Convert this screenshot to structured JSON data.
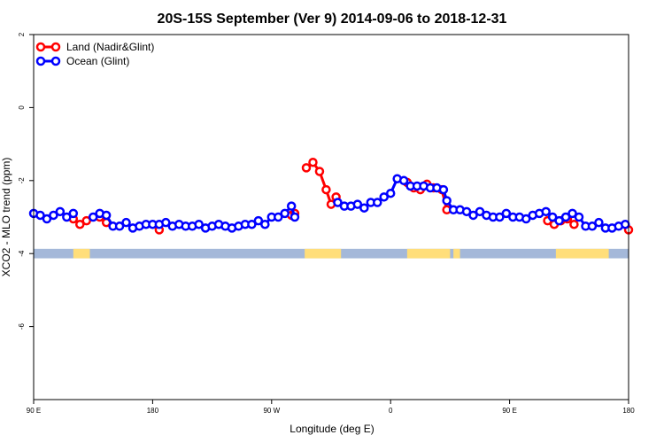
{
  "chart_data": {
    "type": "line",
    "title": "20S-15S September (Ver 9)   2014-09-06 to 2018-12-31",
    "xlabel": "Longitude (deg E)",
    "ylabel": "XCO2 - MLO trend (ppm)",
    "xlim": [
      90,
      450
    ],
    "ylim": [
      -8,
      2
    ],
    "x_ticks": [
      {
        "value": 90,
        "label": "90 E"
      },
      {
        "value": 162,
        "label": "180"
      },
      {
        "value": 234,
        "label": "90 W"
      },
      {
        "value": 306,
        "label": "0"
      },
      {
        "value": 378,
        "label": "90 E"
      },
      {
        "value": 450,
        "label": "180"
      }
    ],
    "y_ticks": [
      {
        "value": 2,
        "label": "2"
      },
      {
        "value": 0,
        "label": "0"
      },
      {
        "value": -2,
        "label": "-2"
      },
      {
        "value": -4,
        "label": "-4"
      },
      {
        "value": -6,
        "label": "-6"
      }
    ],
    "legend_position": "top-left",
    "grid": false,
    "series": [
      {
        "name": "Land (Nadir&Glint)",
        "color": "#ff0000",
        "points": [
          [
            114,
            -3.05
          ],
          [
            118,
            -3.2
          ],
          [
            122,
            -3.1
          ],
          [
            130,
            -3.0
          ],
          [
            134,
            -3.15
          ],
          [
            166,
            -3.35
          ],
          [
            246,
            -2.95
          ],
          [
            248,
            -2.9
          ],
          [
            255,
            -1.65
          ],
          [
            259,
            -1.5
          ],
          [
            263,
            -1.75
          ],
          [
            267,
            -2.25
          ],
          [
            270,
            -2.65
          ],
          [
            273,
            -2.45
          ],
          [
            316,
            -2.05
          ],
          [
            320,
            -2.2
          ],
          [
            324,
            -2.25
          ],
          [
            328,
            -2.1
          ],
          [
            332,
            -2.2
          ],
          [
            337,
            -2.25
          ],
          [
            340,
            -2.8
          ],
          [
            401,
            -3.1
          ],
          [
            405,
            -3.2
          ],
          [
            409,
            -3.1
          ],
          [
            413,
            -3.05
          ],
          [
            417,
            -3.2
          ],
          [
            450,
            -3.35
          ]
        ]
      },
      {
        "name": "Ocean (Glint)",
        "color": "#0000ff",
        "points": [
          [
            90,
            -2.9
          ],
          [
            94,
            -2.95
          ],
          [
            98,
            -3.05
          ],
          [
            102,
            -2.95
          ],
          [
            106,
            -2.85
          ],
          [
            110,
            -3.0
          ],
          [
            114,
            -2.9
          ],
          [
            126,
            -3.0
          ],
          [
            130,
            -2.9
          ],
          [
            134,
            -2.95
          ],
          [
            138,
            -3.25
          ],
          [
            142,
            -3.25
          ],
          [
            146,
            -3.15
          ],
          [
            150,
            -3.3
          ],
          [
            154,
            -3.25
          ],
          [
            158,
            -3.2
          ],
          [
            162,
            -3.2
          ],
          [
            166,
            -3.2
          ],
          [
            170,
            -3.15
          ],
          [
            174,
            -3.25
          ],
          [
            178,
            -3.2
          ],
          [
            182,
            -3.25
          ],
          [
            186,
            -3.25
          ],
          [
            190,
            -3.2
          ],
          [
            194,
            -3.3
          ],
          [
            198,
            -3.25
          ],
          [
            202,
            -3.2
          ],
          [
            206,
            -3.25
          ],
          [
            210,
            -3.3
          ],
          [
            214,
            -3.25
          ],
          [
            218,
            -3.2
          ],
          [
            222,
            -3.2
          ],
          [
            226,
            -3.1
          ],
          [
            230,
            -3.2
          ],
          [
            234,
            -3.0
          ],
          [
            238,
            -3.0
          ],
          [
            242,
            -2.9
          ],
          [
            246,
            -2.7
          ],
          [
            248,
            -3.0
          ],
          [
            274,
            -2.6
          ],
          [
            278,
            -2.7
          ],
          [
            282,
            -2.7
          ],
          [
            286,
            -2.65
          ],
          [
            290,
            -2.75
          ],
          [
            294,
            -2.6
          ],
          [
            298,
            -2.6
          ],
          [
            302,
            -2.45
          ],
          [
            306,
            -2.35
          ],
          [
            310,
            -1.95
          ],
          [
            314,
            -2.0
          ],
          [
            318,
            -2.15
          ],
          [
            322,
            -2.15
          ],
          [
            326,
            -2.15
          ],
          [
            330,
            -2.2
          ],
          [
            334,
            -2.2
          ],
          [
            338,
            -2.25
          ],
          [
            340,
            -2.55
          ],
          [
            344,
            -2.8
          ],
          [
            348,
            -2.8
          ],
          [
            352,
            -2.85
          ],
          [
            356,
            -2.95
          ],
          [
            360,
            -2.85
          ],
          [
            364,
            -2.95
          ],
          [
            368,
            -3.0
          ],
          [
            372,
            -3.0
          ],
          [
            376,
            -2.9
          ],
          [
            380,
            -3.0
          ],
          [
            384,
            -3.0
          ],
          [
            388,
            -3.05
          ],
          [
            392,
            -2.95
          ],
          [
            396,
            -2.9
          ],
          [
            400,
            -2.85
          ],
          [
            404,
            -3.0
          ],
          [
            408,
            -3.1
          ],
          [
            412,
            -3.0
          ],
          [
            416,
            -2.9
          ],
          [
            420,
            -3.0
          ],
          [
            424,
            -3.25
          ],
          [
            428,
            -3.25
          ],
          [
            432,
            -3.15
          ],
          [
            436,
            -3.3
          ],
          [
            440,
            -3.3
          ],
          [
            444,
            -3.25
          ],
          [
            448,
            -3.2
          ]
        ]
      }
    ],
    "band": {
      "y_top": -3.87,
      "y_bottom": -4.13,
      "ocean_color": "#a4b8d9",
      "land_color": "#ffde7a",
      "land_segments": [
        [
          114,
          124
        ],
        [
          254,
          276
        ],
        [
          316,
          342
        ],
        [
          344,
          348
        ],
        [
          406,
          438
        ]
      ]
    }
  }
}
